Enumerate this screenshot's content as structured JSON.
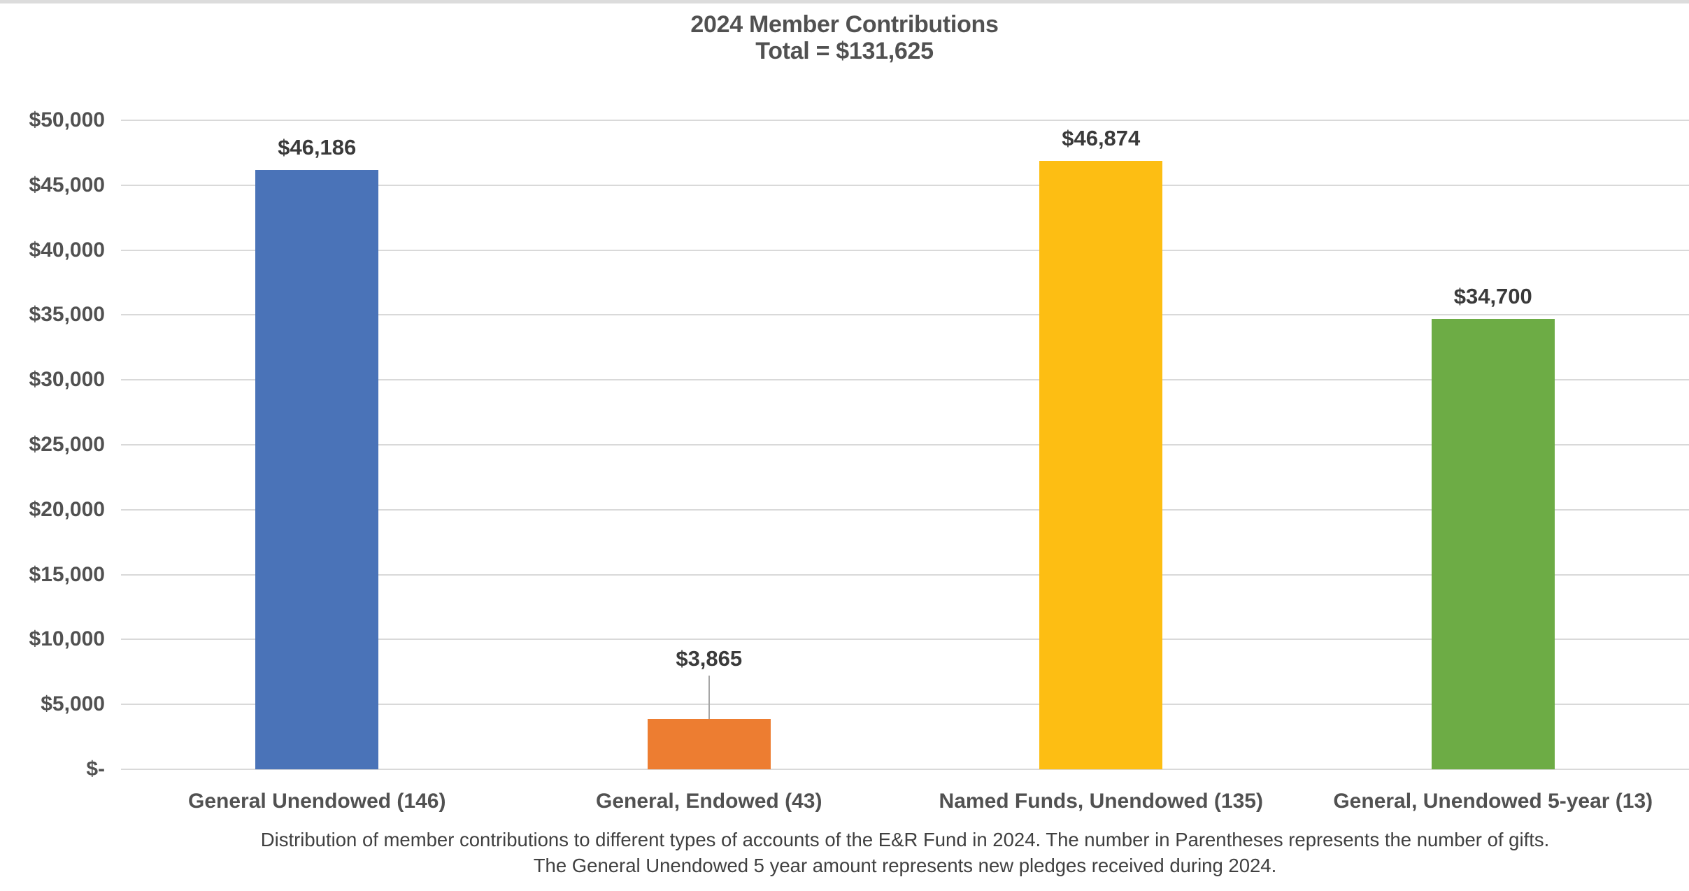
{
  "title": {
    "line1": "2024 Member Contributions",
    "line2": "Total = $131,625"
  },
  "caption": {
    "line1": "Distribution of member contributions to different types of accounts of the E&R Fund in 2024. The number in Parentheses represents the number of gifts.",
    "line2": "The General Unendowed 5 year amount represents new pledges received during 2024."
  },
  "colors": {
    "gridline": "#d9d9d9",
    "top_strip": "#dcdcdc",
    "axis_text": "#515151",
    "data_label_text": "#3a3a3a",
    "leader_line": "#a6a6a6",
    "bar_blue": "#4a73b8",
    "bar_orange": "#ed7d31",
    "bar_yellow": "#fdbe13",
    "bar_green": "#6dac45"
  },
  "chart_data": {
    "type": "bar",
    "title": "2024 Member Contributions",
    "subtitle": "Total = $131,625",
    "total": 131625,
    "grid": true,
    "legend": "none",
    "ylim": [
      0,
      50000
    ],
    "ytick_step": 5000,
    "yticks": [
      {
        "value": 0,
        "label": "$-"
      },
      {
        "value": 5000,
        "label": "$5,000"
      },
      {
        "value": 10000,
        "label": "$10,000"
      },
      {
        "value": 15000,
        "label": "$15,000"
      },
      {
        "value": 20000,
        "label": "$20,000"
      },
      {
        "value": 25000,
        "label": "$25,000"
      },
      {
        "value": 30000,
        "label": "$30,000"
      },
      {
        "value": 35000,
        "label": "$35,000"
      },
      {
        "value": 40000,
        "label": "$40,000"
      },
      {
        "value": 45000,
        "label": "$45,000"
      },
      {
        "value": 50000,
        "label": "$50,000"
      }
    ],
    "categories": [
      "General Unendowed (146)",
      "General, Endowed (43)",
      "Named Funds, Unendowed (135)",
      "General, Unendowed 5-year (13)"
    ],
    "values": [
      46186,
      3865,
      46874,
      34700
    ],
    "points": [
      {
        "category": "General Unendowed (146)",
        "value": 46186,
        "label": "$46,186",
        "color": "#4a73b8",
        "label_lift": 14,
        "leader_line": false
      },
      {
        "category": "General, Endowed (43)",
        "value": 3865,
        "label": "$3,865",
        "color": "#ed7d31",
        "label_lift": 68,
        "leader_line": true
      },
      {
        "category": "Named Funds, Unendowed (135)",
        "value": 46874,
        "label": "$46,874",
        "color": "#fdbe13",
        "label_lift": 14,
        "leader_line": false
      },
      {
        "category": "General, Unendowed 5-year (13)",
        "value": 34700,
        "label": "$34,700",
        "color": "#6dac45",
        "label_lift": 14,
        "leader_line": false
      }
    ]
  }
}
